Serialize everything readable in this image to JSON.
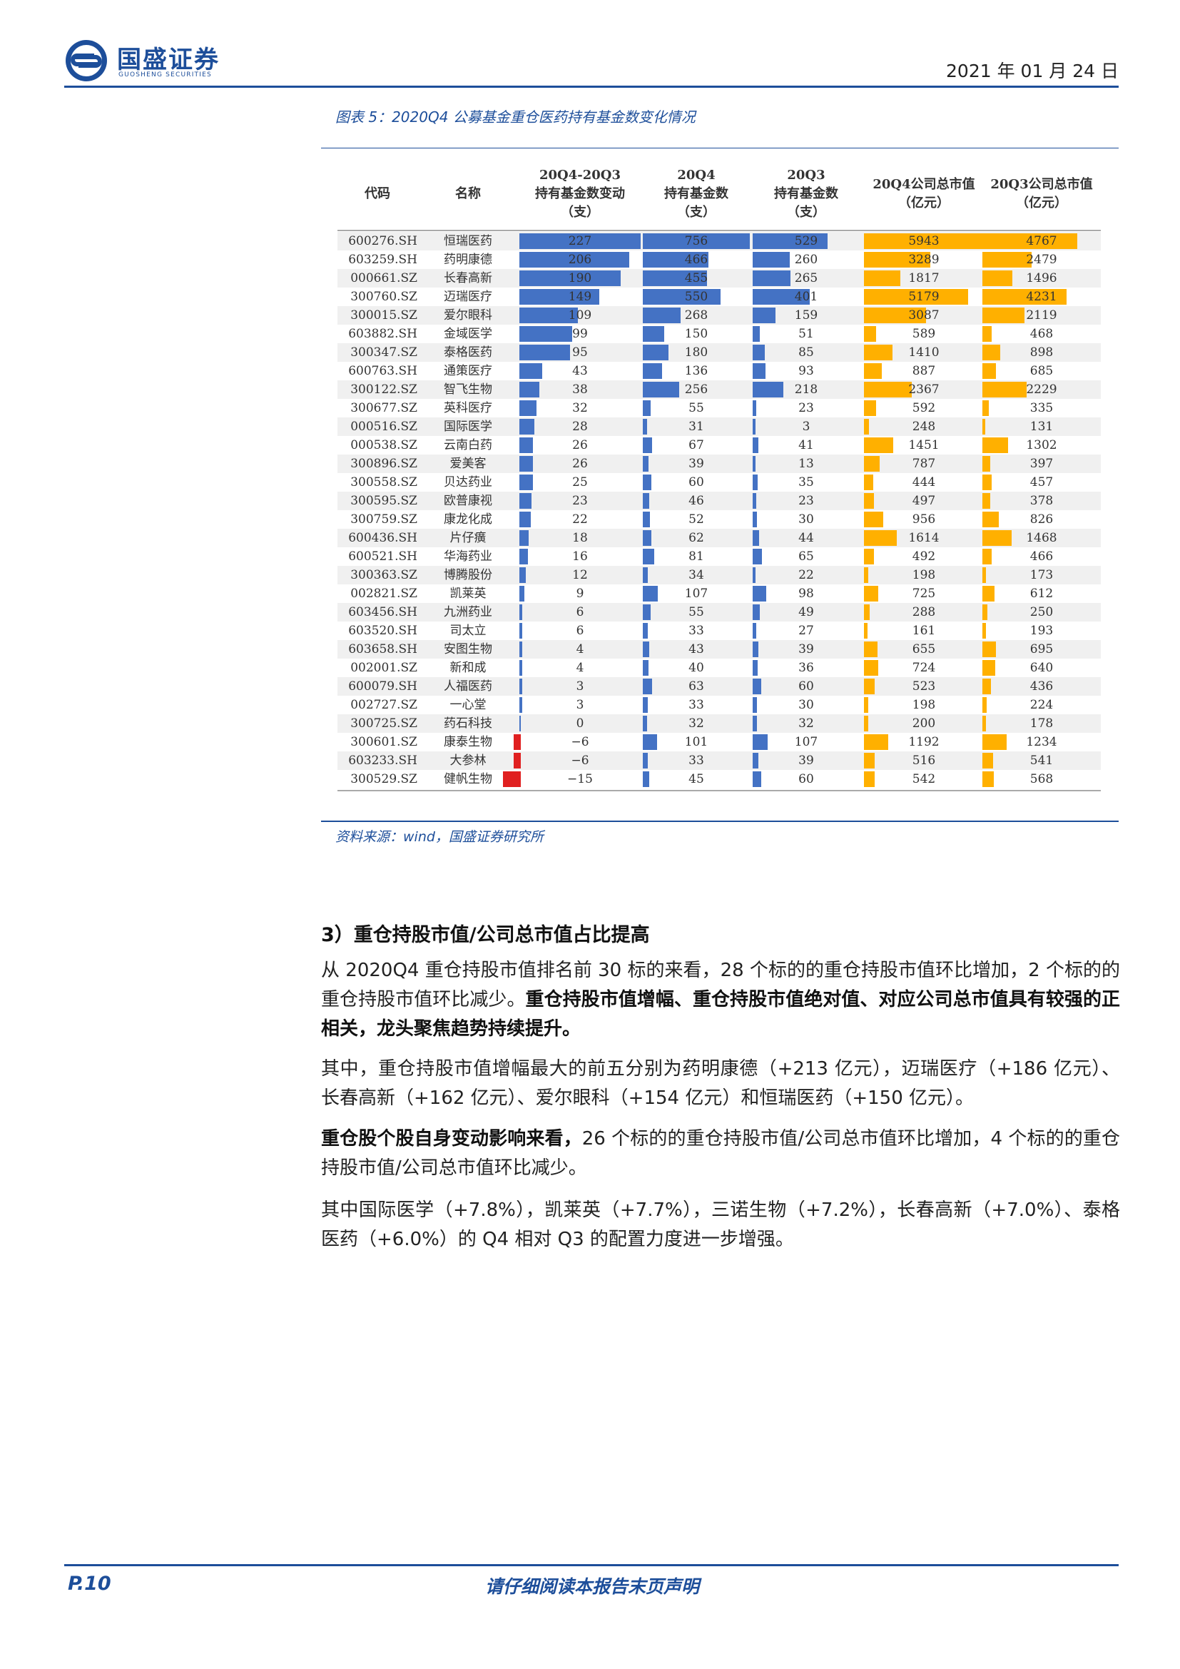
{
  "header": {
    "logo_cn": "国盛证券",
    "logo_en": "GUOSHENG SECURITIES",
    "date": "2021 年 01 月 24 日"
  },
  "figure": {
    "caption": "图表 5：2020Q4 公募基金重仓医药持有基金数变化情况",
    "source": "资料来源：wind，国盛证券研究所"
  },
  "table": {
    "headers": {
      "code": "代码",
      "name": "名称",
      "change": [
        "20Q4-20Q3",
        "持有基金数变动",
        "（支）"
      ],
      "q4": [
        "20Q4",
        "持有基金数",
        "（支）"
      ],
      "q3": [
        "20Q3",
        "持有基金数",
        "（支）"
      ],
      "mv_q4": [
        "20Q4公司总市值",
        "（亿元）"
      ],
      "mv_q3": [
        "20Q3公司总市值",
        "（亿元）"
      ]
    },
    "colors": {
      "blue": "#4472c4",
      "red": "#e02020",
      "orange": "#ffb000"
    },
    "rows": [
      {
        "code": "600276.SH",
        "name": "恒瑞医药",
        "change": 227,
        "q4": 756,
        "q3": 529,
        "mv_q4": 5943,
        "mv_q3": 4767
      },
      {
        "code": "603259.SH",
        "name": "药明康德",
        "change": 206,
        "q4": 466,
        "q3": 260,
        "mv_q4": 3289,
        "mv_q3": 2479
      },
      {
        "code": "000661.SZ",
        "name": "长春高新",
        "change": 190,
        "q4": 455,
        "q3": 265,
        "mv_q4": 1817,
        "mv_q3": 1496
      },
      {
        "code": "300760.SZ",
        "name": "迈瑞医疗",
        "change": 149,
        "q4": 550,
        "q3": 401,
        "mv_q4": 5179,
        "mv_q3": 4231
      },
      {
        "code": "300015.SZ",
        "name": "爱尔眼科",
        "change": 109,
        "q4": 268,
        "q3": 159,
        "mv_q4": 3087,
        "mv_q3": 2119
      },
      {
        "code": "603882.SH",
        "name": "金域医学",
        "change": 99,
        "q4": 150,
        "q3": 51,
        "mv_q4": 589,
        "mv_q3": 468
      },
      {
        "code": "300347.SZ",
        "name": "泰格医药",
        "change": 95,
        "q4": 180,
        "q3": 85,
        "mv_q4": 1410,
        "mv_q3": 898
      },
      {
        "code": "600763.SH",
        "name": "通策医疗",
        "change": 43,
        "q4": 136,
        "q3": 93,
        "mv_q4": 887,
        "mv_q3": 685
      },
      {
        "code": "300122.SZ",
        "name": "智飞生物",
        "change": 38,
        "q4": 256,
        "q3": 218,
        "mv_q4": 2367,
        "mv_q3": 2229
      },
      {
        "code": "300677.SZ",
        "name": "英科医疗",
        "change": 32,
        "q4": 55,
        "q3": 23,
        "mv_q4": 592,
        "mv_q3": 335
      },
      {
        "code": "000516.SZ",
        "name": "国际医学",
        "change": 28,
        "q4": 31,
        "q3": 3,
        "mv_q4": 248,
        "mv_q3": 131
      },
      {
        "code": "000538.SZ",
        "name": "云南白药",
        "change": 26,
        "q4": 67,
        "q3": 41,
        "mv_q4": 1451,
        "mv_q3": 1302
      },
      {
        "code": "300896.SZ",
        "name": "爱美客",
        "change": 26,
        "q4": 39,
        "q3": 13,
        "mv_q4": 787,
        "mv_q3": 397
      },
      {
        "code": "300558.SZ",
        "name": "贝达药业",
        "change": 25,
        "q4": 60,
        "q3": 35,
        "mv_q4": 444,
        "mv_q3": 457
      },
      {
        "code": "300595.SZ",
        "name": "欧普康视",
        "change": 23,
        "q4": 46,
        "q3": 23,
        "mv_q4": 497,
        "mv_q3": 378
      },
      {
        "code": "300759.SZ",
        "name": "康龙化成",
        "change": 22,
        "q4": 52,
        "q3": 30,
        "mv_q4": 956,
        "mv_q3": 826
      },
      {
        "code": "600436.SH",
        "name": "片仔癀",
        "change": 18,
        "q4": 62,
        "q3": 44,
        "mv_q4": 1614,
        "mv_q3": 1468
      },
      {
        "code": "600521.SH",
        "name": "华海药业",
        "change": 16,
        "q4": 81,
        "q3": 65,
        "mv_q4": 492,
        "mv_q3": 466
      },
      {
        "code": "300363.SZ",
        "name": "博腾股份",
        "change": 12,
        "q4": 34,
        "q3": 22,
        "mv_q4": 198,
        "mv_q3": 173
      },
      {
        "code": "002821.SZ",
        "name": "凯莱英",
        "change": 9,
        "q4": 107,
        "q3": 98,
        "mv_q4": 725,
        "mv_q3": 612
      },
      {
        "code": "603456.SH",
        "name": "九洲药业",
        "change": 6,
        "q4": 55,
        "q3": 49,
        "mv_q4": 288,
        "mv_q3": 250
      },
      {
        "code": "603520.SH",
        "name": "司太立",
        "change": 6,
        "q4": 33,
        "q3": 27,
        "mv_q4": 161,
        "mv_q3": 193
      },
      {
        "code": "603658.SH",
        "name": "安图生物",
        "change": 4,
        "q4": 43,
        "q3": 39,
        "mv_q4": 655,
        "mv_q3": 695
      },
      {
        "code": "002001.SZ",
        "name": "新和成",
        "change": 4,
        "q4": 40,
        "q3": 36,
        "mv_q4": 724,
        "mv_q3": 640
      },
      {
        "code": "600079.SH",
        "name": "人福医药",
        "change": 3,
        "q4": 63,
        "q3": 60,
        "mv_q4": 523,
        "mv_q3": 436
      },
      {
        "code": "002727.SZ",
        "name": "一心堂",
        "change": 3,
        "q4": 33,
        "q3": 30,
        "mv_q4": 198,
        "mv_q3": 224
      },
      {
        "code": "300725.SZ",
        "name": "药石科技",
        "change": 0,
        "q4": 32,
        "q3": 32,
        "mv_q4": 200,
        "mv_q3": 178
      },
      {
        "code": "300601.SZ",
        "name": "康泰生物",
        "change": -6,
        "q4": 101,
        "q3": 107,
        "mv_q4": 1192,
        "mv_q3": 1234
      },
      {
        "code": "603233.SH",
        "name": "大参林",
        "change": -6,
        "q4": 33,
        "q3": 39,
        "mv_q4": 516,
        "mv_q3": 541
      },
      {
        "code": "300529.SZ",
        "name": "健帆生物",
        "change": -15,
        "q4": 45,
        "q3": 60,
        "mv_q4": 542,
        "mv_q3": 568
      }
    ]
  },
  "section": {
    "title": "3）重仓持股市值/公司总市值占比提高",
    "p1_plain": "从 2020Q4 重仓持股市值排名前 30 标的来看，28 个标的的重仓持股市值环比增加，2 个标的的重仓持股市值环比减少。",
    "p1_bold": "重仓持股市值增幅、重仓持股市值绝对值、对应公司总市值具有较强的正相关，龙头聚焦趋势持续提升。",
    "p2": "其中，重仓持股市值增幅最大的前五分别为药明康德（+213 亿元），迈瑞医疗（+186 亿元）、长春高新（+162 亿元）、爱尔眼科（+154 亿元）和恒瑞医药（+150 亿元）。",
    "p3_bold": "重仓股个股自身变动影响来看，",
    "p3_plain": "26 个标的的重仓持股市值/公司总市值环比增加，4 个标的的重仓持股市值/公司总市值环比减少。",
    "p4": "其中国际医学（+7.8%），凯莱英（+7.7%），三诺生物（+7.2%），长春高新（+7.0%）、泰格医药（+6.0%）的 Q4 相对 Q3 的配置力度进一步增强。"
  },
  "footer": {
    "page": "P.10",
    "disclaimer": "请仔细阅读本报告末页声明"
  }
}
